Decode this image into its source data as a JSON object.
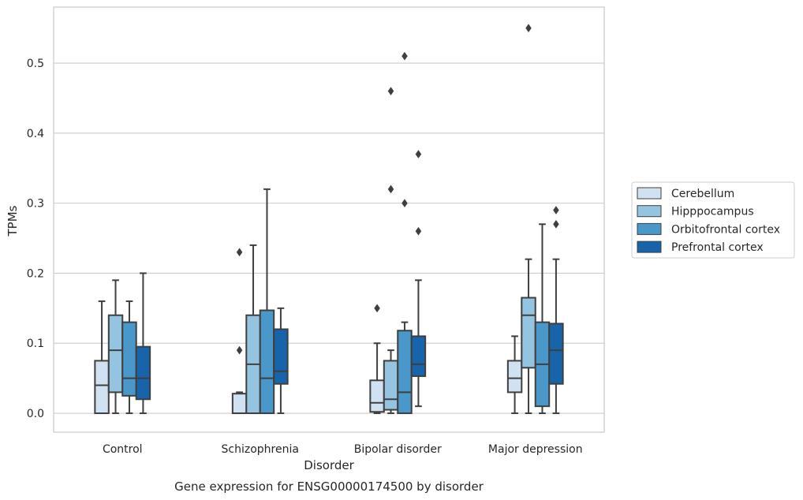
{
  "chart_data": {
    "type": "box",
    "title": "",
    "caption": "Gene expression for ENSG00000174500 by disorder",
    "xlabel": "Disorder",
    "ylabel": "TPMs",
    "ylim": [
      -0.027,
      0.58
    ],
    "yticks": [
      0.0,
      0.1,
      0.2,
      0.3,
      0.4,
      0.5
    ],
    "ytick_labels": [
      "0.0",
      "0.1",
      "0.2",
      "0.3",
      "0.4",
      "0.5"
    ],
    "grid": "horizontal",
    "legend_position": "outside-right",
    "categories": [
      "Control",
      "Schizophrenia",
      "Bipolar disorder",
      "Major depression"
    ],
    "series": [
      {
        "name": "Cerebellum",
        "color": "#d0e1f2",
        "boxes": [
          {
            "whislo": 0.0,
            "q1": 0.0,
            "med": 0.04,
            "q3": 0.075,
            "whishi": 0.16,
            "fliers": []
          },
          {
            "whislo": 0.0,
            "q1": 0.0,
            "med": 0.0,
            "q3": 0.028,
            "whishi": 0.03,
            "fliers": [
              0.09,
              0.23
            ]
          },
          {
            "whislo": 0.0,
            "q1": 0.002,
            "med": 0.015,
            "q3": 0.047,
            "whishi": 0.1,
            "fliers": [
              0.15
            ]
          },
          {
            "whislo": 0.0,
            "q1": 0.03,
            "med": 0.05,
            "q3": 0.075,
            "whishi": 0.11,
            "fliers": []
          }
        ]
      },
      {
        "name": "Hipppocampus",
        "color": "#94c4df",
        "boxes": [
          {
            "whislo": 0.0,
            "q1": 0.03,
            "med": 0.09,
            "q3": 0.14,
            "whishi": 0.19,
            "fliers": []
          },
          {
            "whislo": 0.0,
            "q1": 0.0,
            "med": 0.07,
            "q3": 0.14,
            "whishi": 0.24,
            "fliers": []
          },
          {
            "whislo": 0.0,
            "q1": 0.005,
            "med": 0.02,
            "q3": 0.075,
            "whishi": 0.09,
            "fliers": [
              0.32,
              0.46
            ]
          },
          {
            "whislo": 0.0,
            "q1": 0.065,
            "med": 0.14,
            "q3": 0.165,
            "whishi": 0.22,
            "fliers": [
              0.55
            ]
          }
        ]
      },
      {
        "name": "Orbitofrontal cortex",
        "color": "#4a98c9",
        "boxes": [
          {
            "whislo": 0.0,
            "q1": 0.025,
            "med": 0.05,
            "q3": 0.13,
            "whishi": 0.16,
            "fliers": []
          },
          {
            "whislo": 0.0,
            "q1": 0.0,
            "med": 0.05,
            "q3": 0.147,
            "whishi": 0.32,
            "fliers": []
          },
          {
            "whislo": 0.0,
            "q1": 0.0,
            "med": 0.03,
            "q3": 0.118,
            "whishi": 0.13,
            "fliers": [
              0.3,
              0.51
            ]
          },
          {
            "whislo": 0.0,
            "q1": 0.01,
            "med": 0.07,
            "q3": 0.13,
            "whishi": 0.27,
            "fliers": []
          }
        ]
      },
      {
        "name": "Prefrontal cortex",
        "color": "#1764ab",
        "boxes": [
          {
            "whislo": 0.0,
            "q1": 0.02,
            "med": 0.05,
            "q3": 0.095,
            "whishi": 0.2,
            "fliers": []
          },
          {
            "whislo": 0.0,
            "q1": 0.042,
            "med": 0.06,
            "q3": 0.12,
            "whishi": 0.15,
            "fliers": []
          },
          {
            "whislo": 0.01,
            "q1": 0.053,
            "med": 0.07,
            "q3": 0.11,
            "whishi": 0.19,
            "fliers": [
              0.26,
              0.37
            ]
          },
          {
            "whislo": 0.0,
            "q1": 0.042,
            "med": 0.09,
            "q3": 0.128,
            "whishi": 0.22,
            "fliers": [
              0.27,
              0.29
            ]
          }
        ]
      }
    ]
  }
}
